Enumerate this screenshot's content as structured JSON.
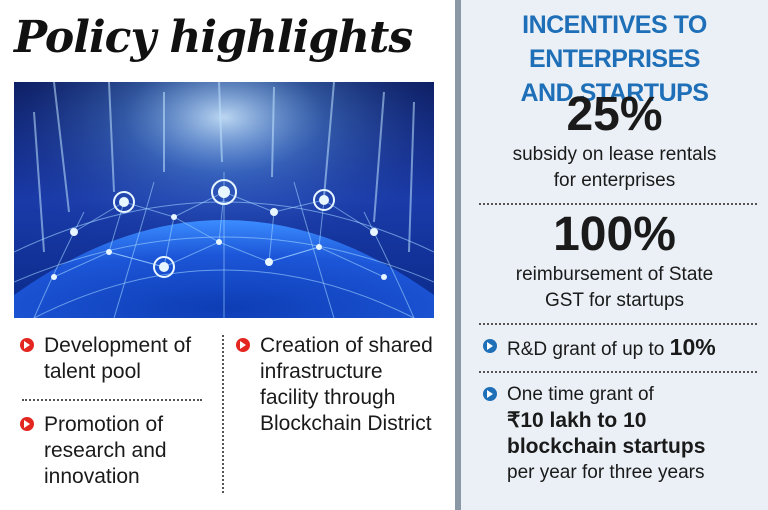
{
  "left": {
    "title": "Policy highlights",
    "bullets_col1": [
      "Development of talent pool",
      "Promotion of research and innovation"
    ],
    "bullets_col2": [
      "Creation of shared infrastructure facility through Blockchain District"
    ],
    "bullet_color": "#e3261f"
  },
  "right": {
    "heading_line1": "INCENTIVES TO ENTERPRISES",
    "heading_line2": "AND STARTUPS",
    "stat1_value": "25%",
    "stat1_line1": "subsidy on lease rentals",
    "stat1_line2": "for enterprises",
    "stat2_value": "100%",
    "stat2_line1": "reimbursement of State",
    "stat2_line2": "GST for startups",
    "grant1_text": "R&D grant of up to ",
    "grant1_value": "10%",
    "grant2_line1": "One time grant of",
    "grant2_line2": "₹10 lakh to 10",
    "grant2_line3": "blockchain startups",
    "grant2_line4": "per year for three years",
    "accent_color": "#1e6fb7",
    "background_color": "#eaf0f6"
  }
}
